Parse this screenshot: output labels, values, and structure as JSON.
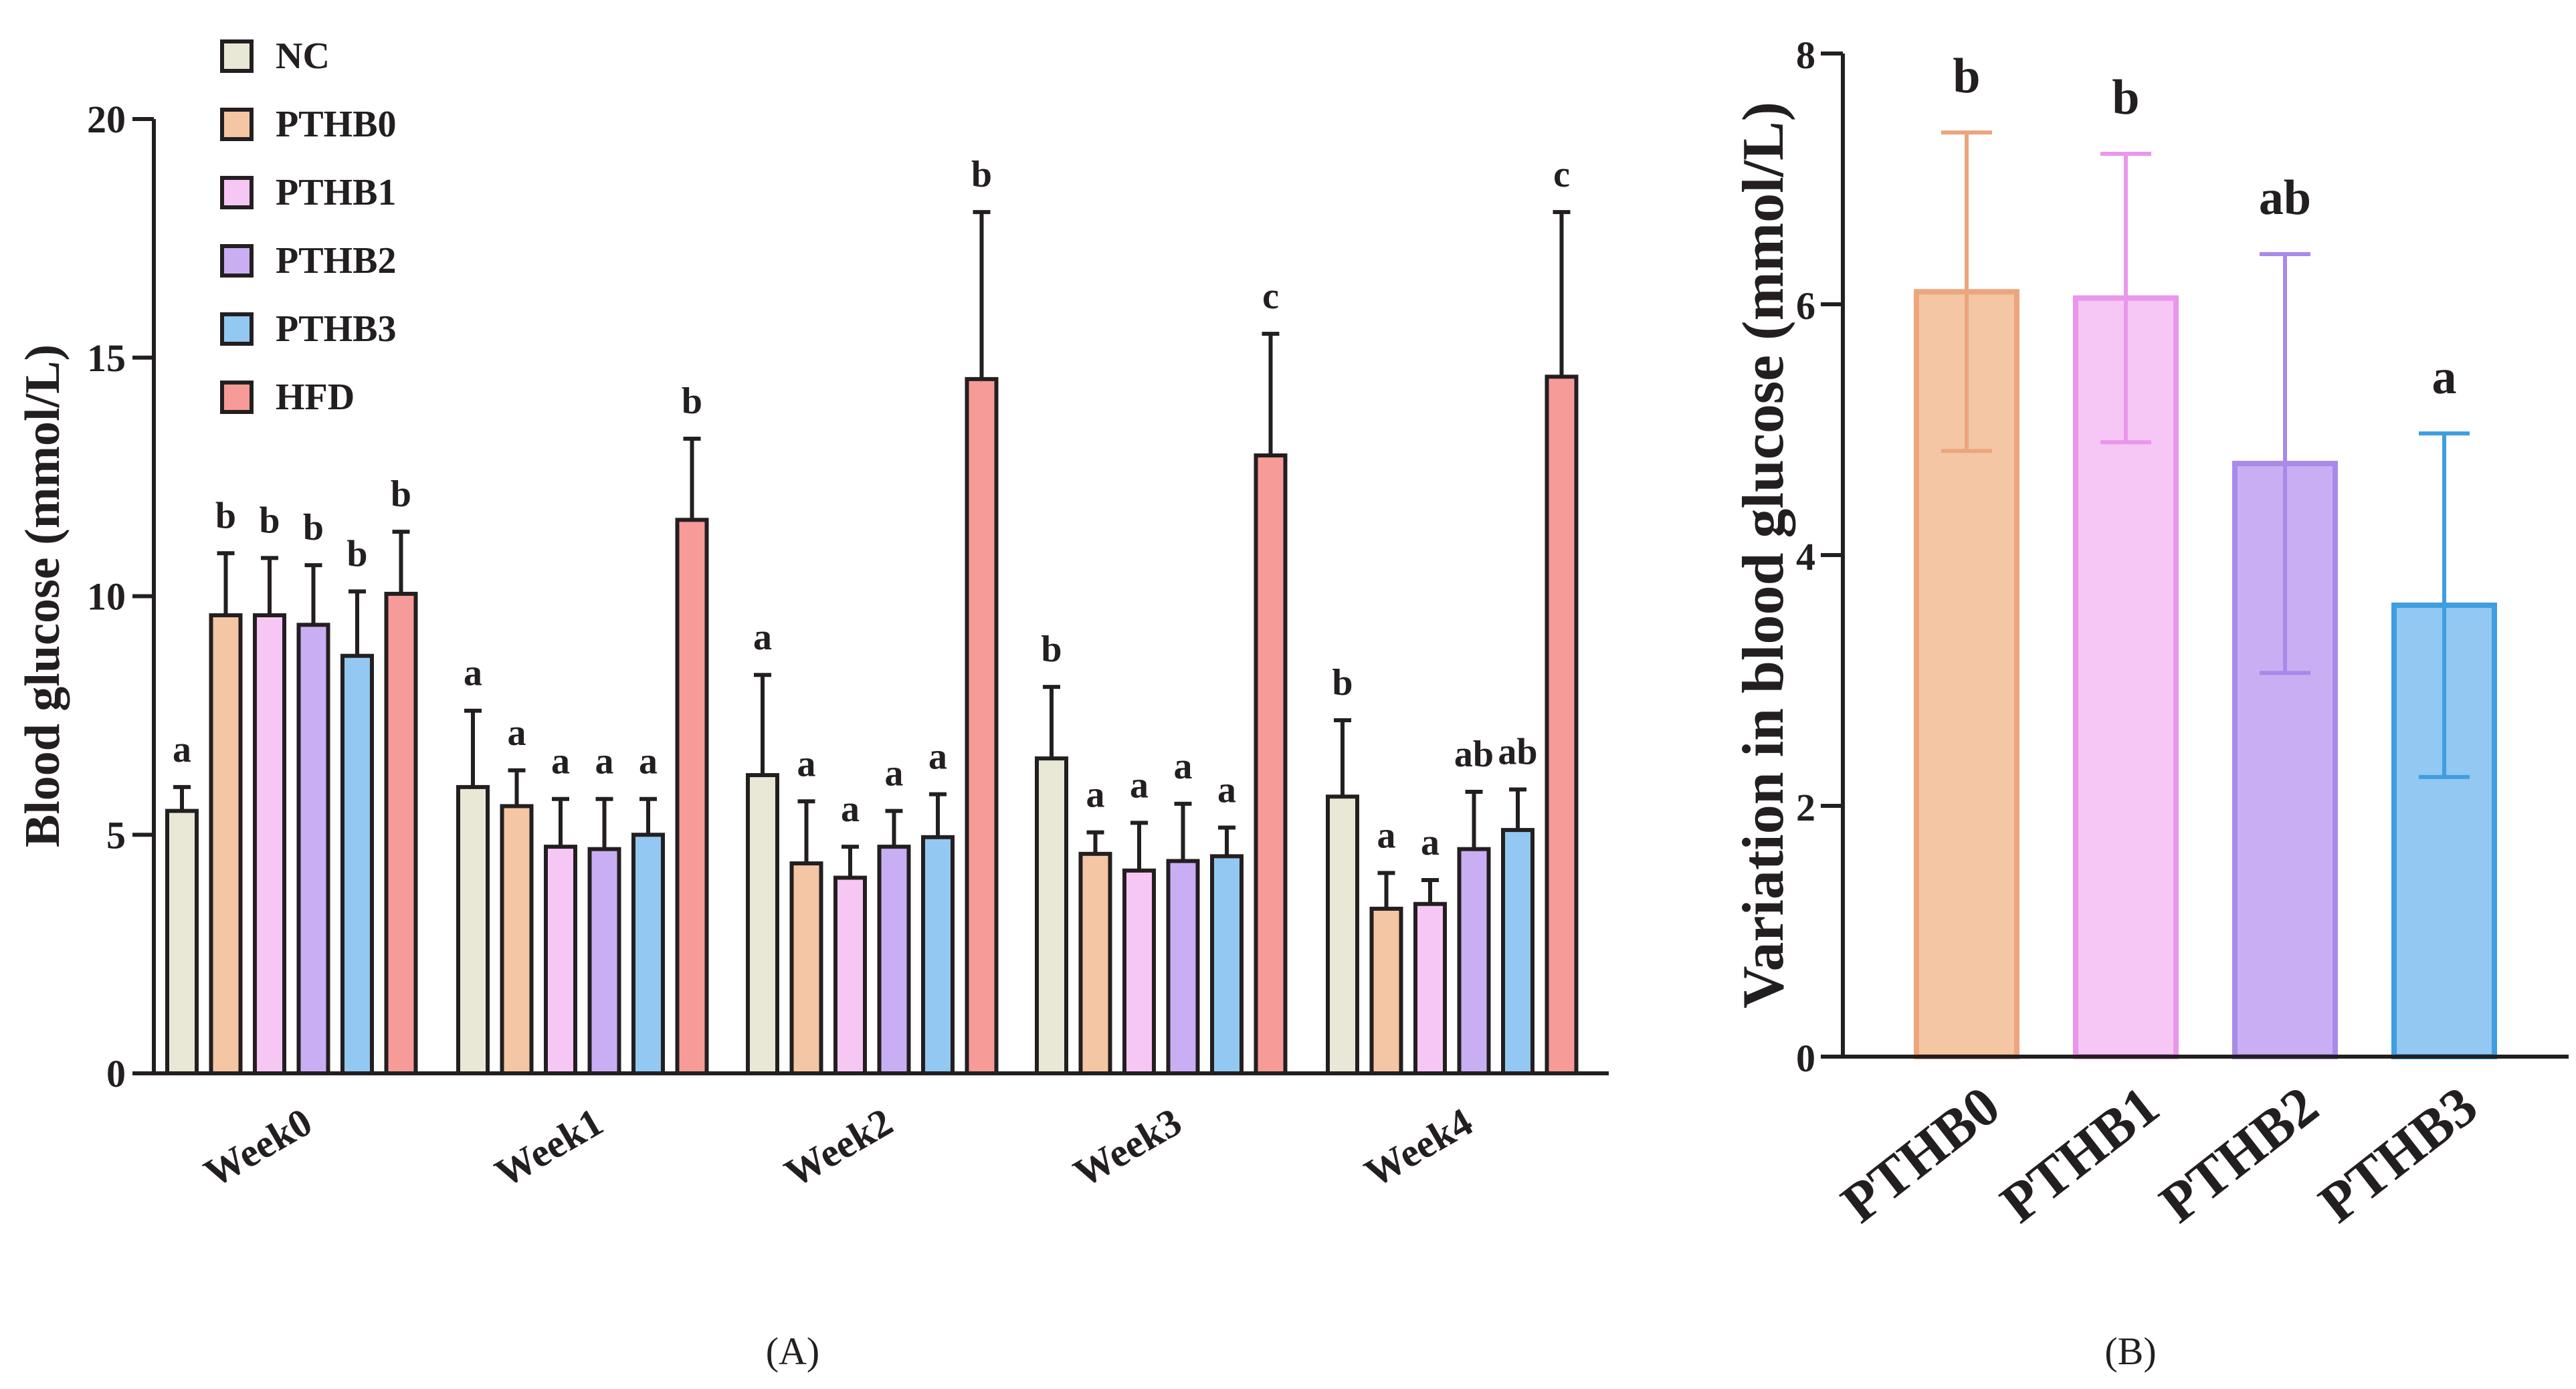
{
  "colors": {
    "NC": "#e9e7d6",
    "PTHB0": "#f4c6a3",
    "PTHB1": "#f6c6f4",
    "PTHB2": "#c9aef3",
    "PTHB3": "#92c8f1",
    "HFD": "#f69b98",
    "axis": "#231f20",
    "PTHB0_edge": "#eca57d",
    "PTHB1_edge": "#ea96ec",
    "PTHB2_edge": "#a88ae8",
    "PTHB3_edge": "#3f9ee0"
  },
  "chart_data": [
    {
      "type": "bar",
      "panel_label": "(A)",
      "title": "",
      "xlabel": "",
      "ylabel": "Blood glucose (mmol/L)",
      "ylim": [
        0,
        20
      ],
      "yticks": [
        "0",
        "5",
        "10",
        "15",
        "20"
      ],
      "categories": [
        "Week0",
        "Week1",
        "Week2",
        "Week3",
        "Week4"
      ],
      "legend": [
        "NC",
        "PTHB0",
        "PTHB1",
        "PTHB2",
        "PTHB3",
        "HFD"
      ],
      "legend_position": "top-left",
      "series": [
        {
          "name": "NC",
          "values": [
            5.5,
            6.0,
            6.25,
            6.6,
            5.8
          ],
          "errors": [
            0.5,
            1.6,
            2.1,
            1.5,
            1.6
          ],
          "letters": [
            "a",
            "a",
            "a",
            "b",
            "b"
          ]
        },
        {
          "name": "PTHB0",
          "values": [
            9.6,
            5.6,
            4.4,
            4.6,
            3.45
          ],
          "errors": [
            1.3,
            0.75,
            1.3,
            0.45,
            0.75
          ],
          "letters": [
            "b",
            "a",
            "a",
            "a",
            "a"
          ]
        },
        {
          "name": "PTHB1",
          "values": [
            9.6,
            4.75,
            4.1,
            4.25,
            3.55
          ],
          "errors": [
            1.2,
            1.0,
            0.65,
            1.0,
            0.5
          ],
          "letters": [
            "b",
            "a",
            "a",
            "a",
            "a"
          ]
        },
        {
          "name": "PTHB2",
          "values": [
            9.4,
            4.7,
            4.75,
            4.45,
            4.7
          ],
          "errors": [
            1.25,
            1.05,
            0.75,
            1.2,
            1.2
          ],
          "letters": [
            "b",
            "a",
            "a",
            "a",
            "ab"
          ]
        },
        {
          "name": "PTHB3",
          "values": [
            8.75,
            5.0,
            4.95,
            4.55,
            5.1
          ],
          "errors": [
            1.35,
            0.75,
            0.9,
            0.6,
            0.85
          ],
          "letters": [
            "b",
            "a",
            "a",
            "a",
            "ab"
          ]
        },
        {
          "name": "HFD",
          "values": [
            10.05,
            11.6,
            14.55,
            12.95,
            14.6
          ],
          "errors": [
            1.3,
            1.7,
            3.5,
            2.55,
            3.45
          ],
          "letters": [
            "b",
            "b",
            "b",
            "c",
            "c"
          ]
        }
      ]
    },
    {
      "type": "bar",
      "panel_label": "(B)",
      "title": "",
      "xlabel": "",
      "ylabel": "Variation in blood glucose (mmol/L)",
      "ylim": [
        0,
        8
      ],
      "yticks": [
        "0",
        "2",
        "4",
        "6",
        "8"
      ],
      "categories": [
        "PTHB0",
        "PTHB1",
        "PTHB2",
        "PTHB3"
      ],
      "values": [
        6.1,
        6.05,
        4.73,
        3.6
      ],
      "errors": [
        1.27,
        1.15,
        1.67,
        1.37
      ],
      "letters": [
        "b",
        "b",
        "ab",
        "a"
      ]
    }
  ]
}
